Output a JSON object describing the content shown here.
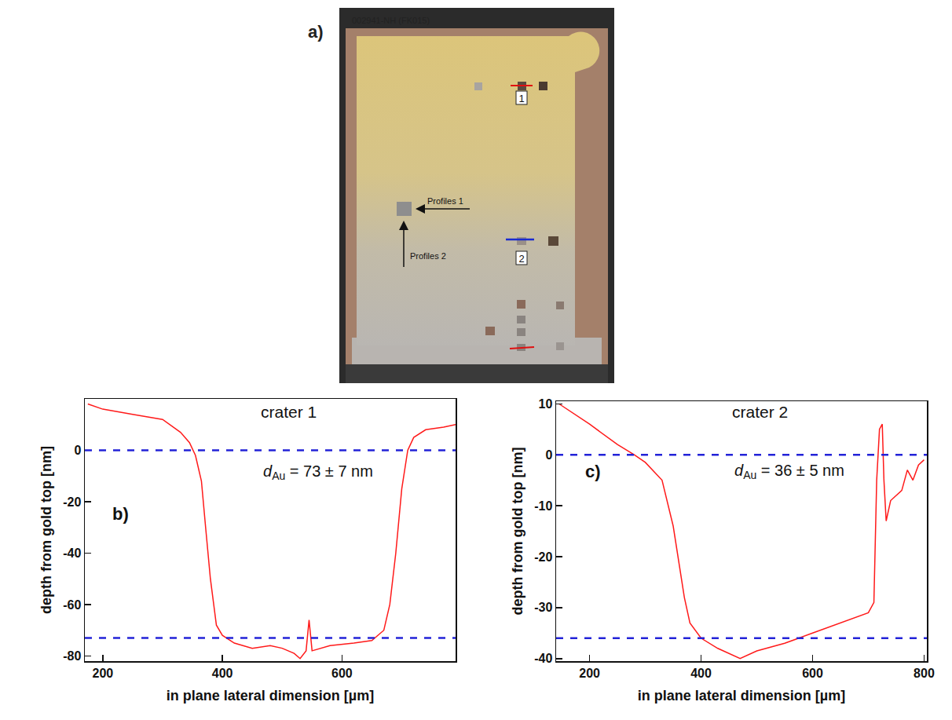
{
  "panel_a": {
    "panel_label": "a)",
    "sample_id": "002941-NH (FK015)",
    "crater_labels": [
      "1",
      "2"
    ],
    "arrow_labels": [
      "Profiles 1",
      "Profiles 2"
    ]
  },
  "chart_data": [
    {
      "type": "line",
      "title": "crater 1",
      "panel_label": "b)",
      "xlabel": "in plane lateral dimension [µm]",
      "ylabel": "depth from gold top [nm]",
      "x": [
        175,
        200,
        250,
        300,
        330,
        345,
        355,
        365,
        372,
        380,
        390,
        400,
        420,
        450,
        480,
        500,
        520,
        530,
        540,
        545,
        550,
        580,
        620,
        650,
        670,
        680,
        690,
        700,
        710,
        720,
        740,
        770,
        790
      ],
      "values": [
        18,
        16,
        14,
        12,
        7,
        3,
        -2,
        -12,
        -30,
        -50,
        -68,
        -72,
        -75,
        -77,
        -76,
        -77,
        -79,
        -81,
        -78,
        -66,
        -78,
        -76,
        -75,
        -74,
        -70,
        -60,
        -40,
        -15,
        0,
        5,
        8,
        9,
        10
      ],
      "color": "#ff1a1a",
      "hlines": {
        "values": [
          0,
          -73
        ],
        "color": "#2323d8",
        "line_style": "dashed"
      },
      "annotation": {
        "symbol": "d",
        "subscript": "Au",
        "text": "= 73 ± 7 nm"
      },
      "xlim": [
        170,
        790
      ],
      "xticks": [
        200,
        400,
        600
      ],
      "ylim": [
        -82,
        20
      ],
      "yticks": [
        0,
        -20,
        -40,
        -60,
        -80
      ]
    },
    {
      "type": "line",
      "title": "crater 2",
      "panel_label": "c)",
      "xlabel": "in plane lateral dimension [µm]",
      "ylabel": "depth from gold top [nm]",
      "x": [
        145,
        200,
        250,
        280,
        300,
        330,
        350,
        370,
        380,
        400,
        430,
        470,
        500,
        550,
        600,
        650,
        700,
        710,
        712,
        715,
        720,
        725,
        728,
        732,
        740,
        760,
        770,
        780,
        790,
        800
      ],
      "values": [
        10,
        6,
        2,
        0,
        -1.5,
        -5,
        -14,
        -28,
        -33,
        -36,
        -38,
        -40,
        -38.5,
        -37,
        -35,
        -33,
        -31,
        -29,
        -20,
        -5,
        5,
        6,
        -5,
        -13,
        -9,
        -7,
        -3,
        -5,
        -2,
        -1
      ],
      "color": "#ff1a1a",
      "hlines": {
        "values": [
          0,
          -36
        ],
        "color": "#2323d8",
        "line_style": "dashed"
      },
      "annotation": {
        "symbol": "d",
        "subscript": "Au",
        "text": "= 36 ± 5 nm"
      },
      "xlim": [
        140,
        805
      ],
      "xticks": [
        200,
        400,
        600,
        800
      ],
      "ylim": [
        -40.5,
        10.5
      ],
      "yticks": [
        10,
        0,
        -10,
        -20,
        -30,
        -40
      ]
    }
  ]
}
